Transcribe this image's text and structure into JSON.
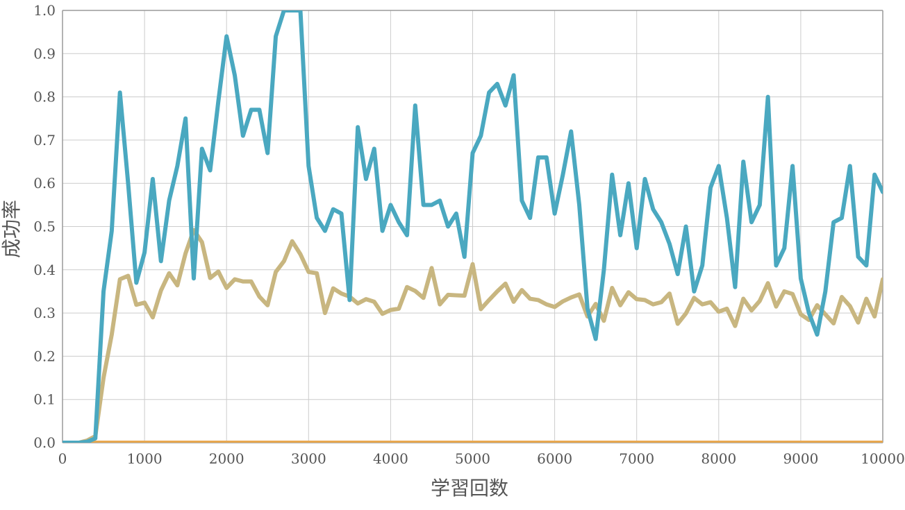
{
  "chart_data": {
    "type": "line",
    "title": "",
    "xlabel": "学習回数",
    "ylabel": "成功率",
    "xlim": [
      0,
      10000
    ],
    "ylim": [
      0.0,
      1.0
    ],
    "grid": true,
    "legend": "none",
    "x_ticks": [
      "0",
      "1000",
      "2000",
      "3000",
      "4000",
      "5000",
      "6000",
      "7000",
      "8000",
      "9000",
      "10000"
    ],
    "y_ticks": [
      "0.0",
      "0.1",
      "0.2",
      "0.3",
      "0.4",
      "0.5",
      "0.6",
      "0.7",
      "0.8",
      "0.9",
      "1.0"
    ],
    "x": [
      0,
      100,
      200,
      300,
      400,
      500,
      600,
      700,
      800,
      900,
      1000,
      1100,
      1200,
      1300,
      1400,
      1500,
      1600,
      1700,
      1800,
      1900,
      2000,
      2100,
      2200,
      2300,
      2400,
      2500,
      2600,
      2700,
      2800,
      2900,
      3000,
      3100,
      3200,
      3300,
      3400,
      3500,
      3600,
      3700,
      3800,
      3900,
      4000,
      4100,
      4200,
      4300,
      4400,
      4500,
      4600,
      4700,
      4800,
      4900,
      5000,
      5100,
      5200,
      5300,
      5400,
      5500,
      5600,
      5700,
      5800,
      5900,
      6000,
      6100,
      6200,
      6300,
      6400,
      6500,
      6600,
      6700,
      6800,
      6900,
      7000,
      7100,
      7200,
      7300,
      7400,
      7500,
      7600,
      7700,
      7800,
      7900,
      8000,
      8100,
      8200,
      8300,
      8400,
      8500,
      8600,
      8700,
      8800,
      8900,
      9000,
      9100,
      9200,
      9300,
      9400,
      9500,
      9600,
      9700,
      9800,
      9900,
      10000
    ],
    "series": [
      {
        "color": "#4aa8c0",
        "values": [
          0,
          0,
          0,
          0.002,
          0.01,
          0.35,
          0.49,
          0.81,
          0.6,
          0.37,
          0.44,
          0.61,
          0.42,
          0.56,
          0.64,
          0.75,
          0.38,
          0.68,
          0.63,
          0.79,
          0.94,
          0.85,
          0.71,
          0.77,
          0.77,
          0.67,
          0.94,
          1.0,
          1.0,
          1.0,
          0.64,
          0.52,
          0.49,
          0.54,
          0.53,
          0.33,
          0.73,
          0.61,
          0.68,
          0.49,
          0.55,
          0.51,
          0.48,
          0.78,
          0.55,
          0.55,
          0.56,
          0.5,
          0.53,
          0.43,
          0.67,
          0.71,
          0.81,
          0.83,
          0.78,
          0.85,
          0.56,
          0.52,
          0.66,
          0.66,
          0.53,
          0.62,
          0.72,
          0.55,
          0.31,
          0.24,
          0.4,
          0.62,
          0.48,
          0.6,
          0.45,
          0.61,
          0.54,
          0.51,
          0.46,
          0.39,
          0.5,
          0.35,
          0.41,
          0.59,
          0.64,
          0.52,
          0.36,
          0.65,
          0.51,
          0.55,
          0.8,
          0.41,
          0.45,
          0.64,
          0.38,
          0.3,
          0.25,
          0.35,
          0.51,
          0.52,
          0.64,
          0.43,
          0.41,
          0.62,
          0.58
        ]
      },
      {
        "color": "#c8b680",
        "values": [
          0,
          0,
          0,
          0.005,
          0.015,
          0.15,
          0.25,
          0.378,
          0.386,
          0.319,
          0.324,
          0.29,
          0.352,
          0.392,
          0.364,
          0.438,
          0.492,
          0.464,
          0.381,
          0.396,
          0.358,
          0.378,
          0.373,
          0.373,
          0.338,
          0.318,
          0.395,
          0.42,
          0.466,
          0.436,
          0.395,
          0.392,
          0.3,
          0.357,
          0.345,
          0.338,
          0.322,
          0.332,
          0.326,
          0.298,
          0.307,
          0.31,
          0.36,
          0.351,
          0.335,
          0.404,
          0.32,
          0.342,
          0.341,
          0.34,
          0.413,
          0.309,
          0.33,
          0.35,
          0.368,
          0.326,
          0.353,
          0.333,
          0.33,
          0.32,
          0.314,
          0.327,
          0.336,
          0.343,
          0.292,
          0.321,
          0.282,
          0.358,
          0.318,
          0.348,
          0.332,
          0.33,
          0.32,
          0.325,
          0.345,
          0.275,
          0.299,
          0.335,
          0.32,
          0.325,
          0.303,
          0.31,
          0.27,
          0.333,
          0.306,
          0.328,
          0.369,
          0.315,
          0.35,
          0.344,
          0.297,
          0.284,
          0.318,
          0.297,
          0.276,
          0.337,
          0.316,
          0.278,
          0.333,
          0.292,
          0.378
        ]
      },
      {
        "color": "#e8a850",
        "values": [
          0,
          0,
          0,
          0,
          0,
          0,
          0,
          0,
          0,
          0,
          0,
          0,
          0,
          0,
          0,
          0,
          0,
          0,
          0,
          0,
          0,
          0,
          0,
          0,
          0,
          0,
          0,
          0,
          0,
          0,
          0,
          0,
          0,
          0,
          0,
          0,
          0,
          0,
          0,
          0,
          0,
          0,
          0,
          0,
          0,
          0,
          0,
          0,
          0,
          0,
          0,
          0,
          0,
          0,
          0,
          0,
          0,
          0,
          0,
          0,
          0,
          0,
          0,
          0,
          0,
          0,
          0,
          0,
          0,
          0,
          0,
          0,
          0,
          0,
          0,
          0,
          0,
          0,
          0,
          0,
          0,
          0,
          0,
          0,
          0,
          0,
          0,
          0,
          0,
          0,
          0,
          0,
          0,
          0,
          0,
          0,
          0,
          0,
          0,
          0,
          0
        ]
      }
    ]
  }
}
